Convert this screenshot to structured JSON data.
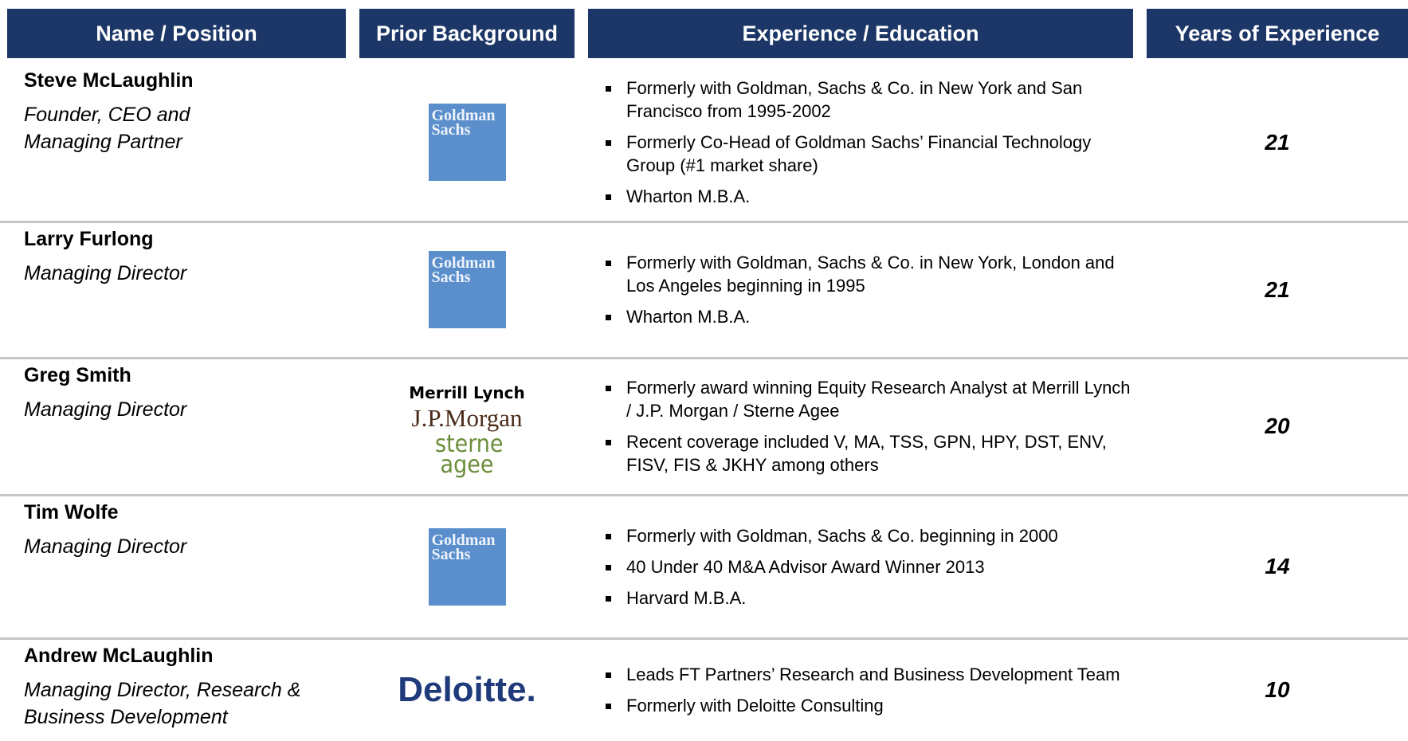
{
  "table": {
    "columns": [
      "Name / Position",
      "Prior Background",
      "Experience / Education",
      "Years of Experience"
    ],
    "rows": [
      {
        "name": "Steve McLaughlin",
        "position": [
          "Founder, CEO and",
          "Managing Partner"
        ],
        "background": [
          "Goldman Sachs"
        ],
        "bullets": [
          "Formerly with Goldman, Sachs & Co. in New York and San Francisco from 1995-2002",
          "Formerly Co-Head of Goldman Sachs’ Financial Technology Group (#1 market share)",
          "Wharton M.B.A."
        ],
        "years": 21
      },
      {
        "name": "Larry Furlong",
        "position": [
          "Managing Director"
        ],
        "background": [
          "Goldman Sachs"
        ],
        "bullets": [
          "Formerly with Goldman, Sachs & Co. in New York, London and Los Angeles beginning in 1995",
          "Wharton M.B.A."
        ],
        "years": 21
      },
      {
        "name": "Greg Smith",
        "position": [
          "Managing Director"
        ],
        "background": [
          "Merrill Lynch",
          "J.P.Morgan",
          "sterne agee"
        ],
        "bullets": [
          "Formerly award winning Equity Research Analyst at Merrill Lynch / J.P. Morgan / Sterne Agee",
          "Recent coverage included V, MA, TSS, GPN, HPY, DST, ENV, FISV, FIS & JKHY among others"
        ],
        "years": 20
      },
      {
        "name": "Tim Wolfe",
        "position": [
          "Managing Director"
        ],
        "background": [
          "Goldman Sachs"
        ],
        "bullets": [
          "Formerly with Goldman, Sachs & Co. beginning in 2000",
          "40 Under 40 M&A Advisor Award Winner 2013",
          "Harvard M.B.A."
        ],
        "years": 14
      },
      {
        "name": "Andrew McLaughlin",
        "position": [
          "Managing Director, Research &",
          "Business Development"
        ],
        "background": [
          "Deloitte."
        ],
        "bullets": [
          "Leads FT Partners’ Research and Business Development Team",
          "Formerly with Deloitte Consulting"
        ],
        "years": 10
      }
    ]
  }
}
